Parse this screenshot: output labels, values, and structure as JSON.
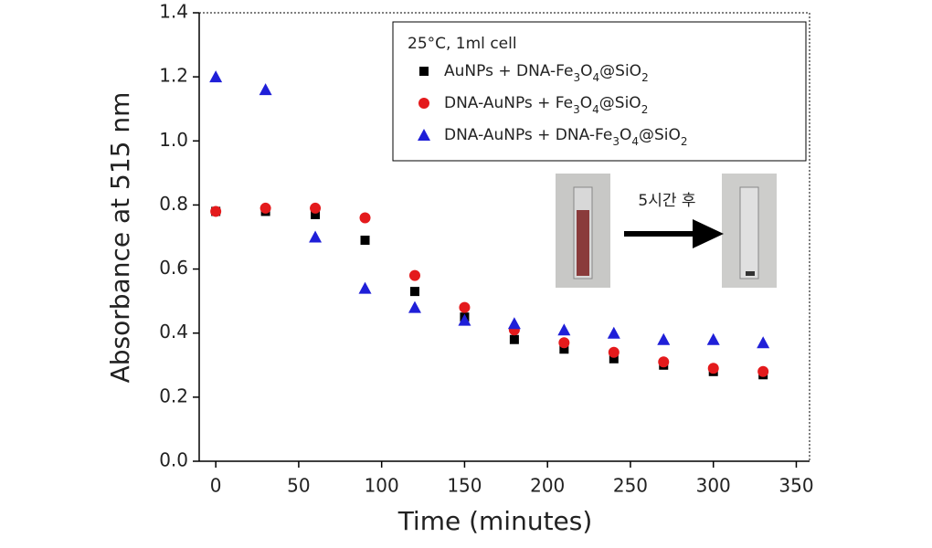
{
  "chart_data": {
    "type": "scatter",
    "x_label": "Time (minutes)",
    "y_label": "Absorbance at 515 nm",
    "legend_title": "25°C, 1ml cell",
    "annotation": "5시간 후",
    "x": [
      0,
      30,
      60,
      90,
      120,
      150,
      180,
      210,
      240,
      270,
      300,
      330
    ],
    "series": [
      {
        "name": "AuNPs + DNA-Fe3O4@SiO2",
        "color": "#000000",
        "marker": "square",
        "values": [
          0.78,
          0.78,
          0.77,
          0.69,
          0.53,
          0.45,
          0.38,
          0.35,
          0.32,
          0.3,
          0.28,
          0.27
        ]
      },
      {
        "name": "DNA-AuNPs + Fe3O4@SiO2",
        "color": "#e41a1c",
        "marker": "circle",
        "values": [
          0.78,
          0.79,
          0.79,
          0.76,
          0.58,
          0.48,
          0.41,
          0.37,
          0.34,
          0.31,
          0.29,
          0.28
        ]
      },
      {
        "name": "DNA-AuNPs + DNA-Fe3O4@SiO2",
        "color": "#1f1fd8",
        "marker": "triangle",
        "values": [
          1.2,
          1.16,
          0.7,
          0.54,
          0.48,
          0.44,
          0.43,
          0.41,
          0.4,
          0.38,
          0.38,
          0.37
        ]
      }
    ],
    "xlim": [
      -10,
      358
    ],
    "ylim": [
      0,
      1.4
    ],
    "xticks": [
      0,
      50,
      100,
      150,
      200,
      250,
      300,
      350
    ],
    "yticks": [
      {
        "value": 0,
        "label": "0.0"
      },
      0.2,
      0.4,
      0.6,
      0.8,
      {
        "value": 1,
        "label": "1.0"
      },
      1.2,
      1.4
    ]
  }
}
